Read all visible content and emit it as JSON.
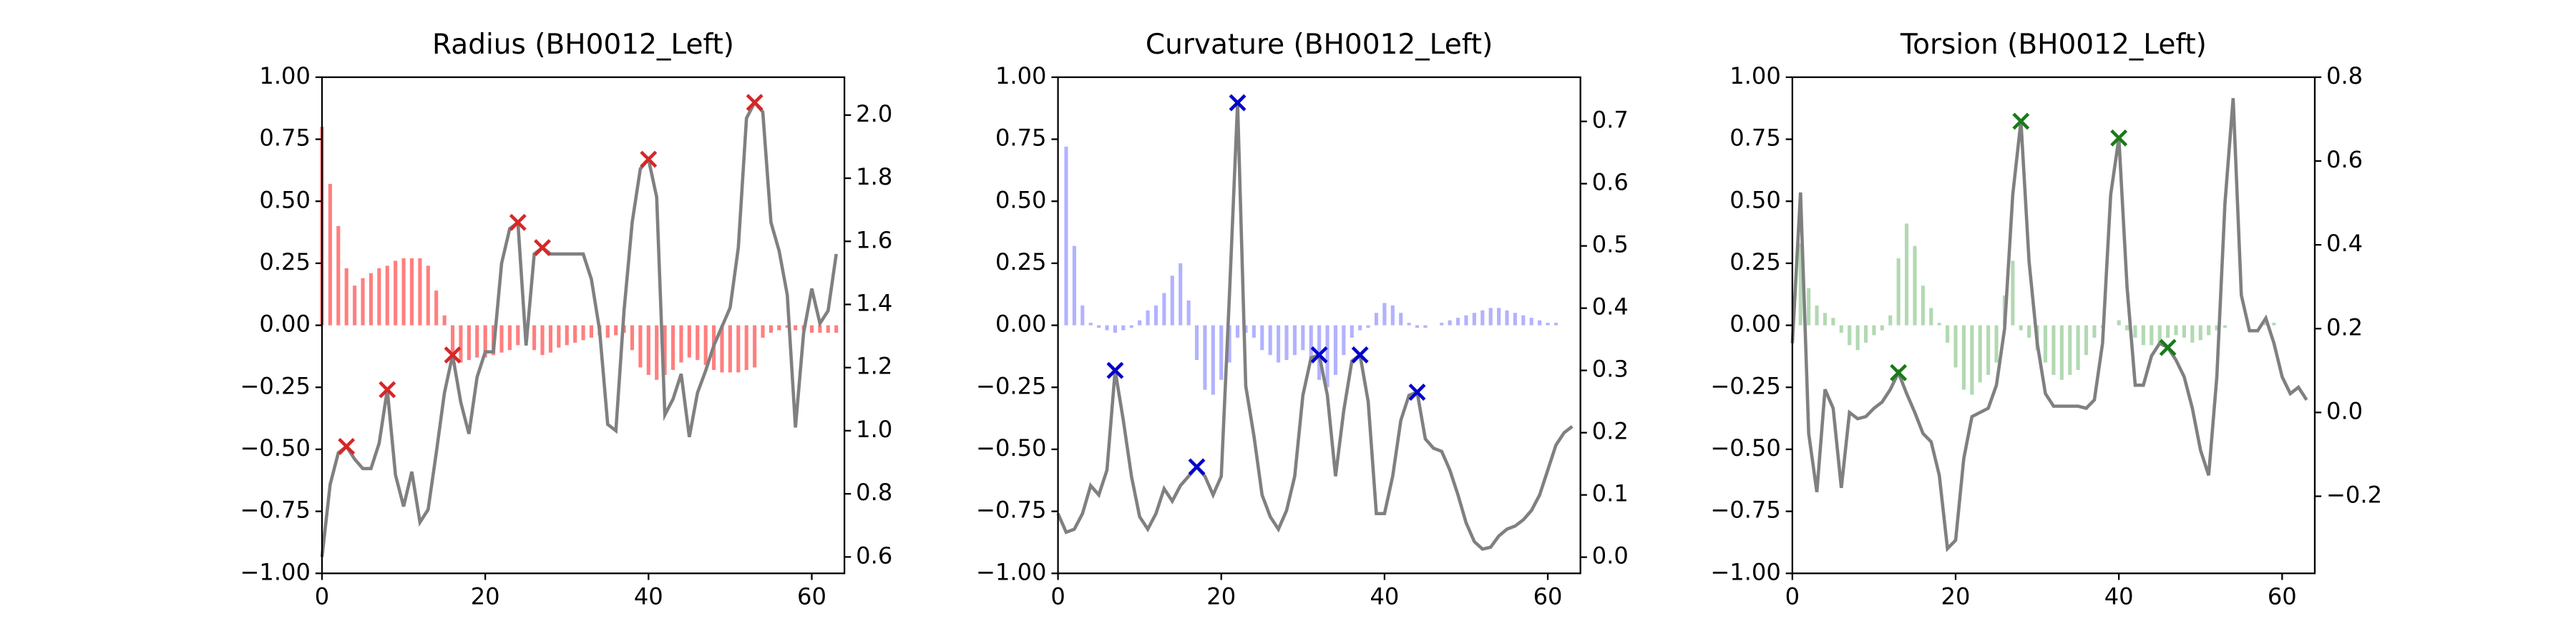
{
  "chart_data": [
    {
      "type": "bar-line",
      "title": "Radius (BH0012_Left)",
      "x": [
        0,
        1,
        2,
        3,
        4,
        5,
        6,
        7,
        8,
        9,
        10,
        11,
        12,
        13,
        14,
        15,
        16,
        17,
        18,
        19,
        20,
        21,
        22,
        23,
        24,
        25,
        26,
        27,
        28,
        29,
        30,
        31,
        32,
        33,
        34,
        35,
        36,
        37,
        38,
        39,
        40,
        41,
        42,
        43,
        44,
        45,
        46,
        47,
        48,
        49,
        50,
        51,
        52,
        53,
        54,
        55,
        56,
        57,
        58,
        59,
        60,
        61,
        62,
        63
      ],
      "bars": {
        "color": "#ff0000",
        "opacity": 0.5,
        "values": [
          0.8,
          0.57,
          0.4,
          0.23,
          0.16,
          0.19,
          0.21,
          0.23,
          0.24,
          0.26,
          0.27,
          0.27,
          0.27,
          0.24,
          0.14,
          0.04,
          -0.13,
          -0.15,
          -0.14,
          -0.13,
          -0.13,
          -0.12,
          -0.11,
          -0.1,
          -0.08,
          -0.06,
          -0.1,
          -0.12,
          -0.11,
          -0.09,
          -0.08,
          -0.07,
          -0.06,
          -0.05,
          -0.04,
          -0.05,
          -0.04,
          -0.03,
          -0.1,
          -0.17,
          -0.2,
          -0.22,
          -0.2,
          -0.18,
          -0.15,
          -0.13,
          -0.14,
          -0.16,
          -0.18,
          -0.19,
          -0.19,
          -0.19,
          -0.18,
          -0.17,
          -0.05,
          -0.03,
          -0.02,
          -0.01,
          -0.02,
          -0.02,
          -0.03,
          -0.03,
          -0.03,
          -0.03
        ]
      },
      "line": {
        "color": "#808080",
        "axis": "y2",
        "values": [
          0.6,
          0.83,
          0.93,
          0.95,
          0.91,
          0.88,
          0.88,
          0.96,
          1.13,
          0.86,
          0.76,
          0.87,
          0.71,
          0.75,
          0.93,
          1.12,
          1.24,
          1.09,
          0.99,
          1.17,
          1.25,
          1.25,
          1.53,
          1.64,
          1.66,
          1.27,
          1.56,
          1.58,
          1.56,
          1.56,
          1.56,
          1.56,
          1.56,
          1.48,
          1.32,
          1.02,
          1.0,
          1.38,
          1.66,
          1.83,
          1.86,
          1.74,
          1.05,
          1.1,
          1.18,
          0.98,
          1.12,
          1.19,
          1.27,
          1.33,
          1.39,
          1.58,
          1.99,
          2.04,
          2.01,
          1.66,
          1.57,
          1.43,
          1.01,
          1.31,
          1.45,
          1.34,
          1.38,
          1.56
        ]
      },
      "peaks": {
        "color": "#d62728",
        "axis": "y2",
        "x": [
          3,
          8,
          16,
          24,
          27,
          40,
          53
        ],
        "values": [
          0.95,
          1.13,
          1.24,
          1.66,
          1.58,
          1.86,
          2.04
        ]
      },
      "xlim": [
        0,
        64
      ],
      "xticks": [
        0,
        20,
        40,
        60
      ],
      "ylim": [
        -1,
        1
      ],
      "yticks": [
        {
          "value": -1,
          "label": "−1.00"
        },
        {
          "value": -0.75,
          "label": "−0.75"
        },
        {
          "value": -0.5,
          "label": "−0.50"
        },
        {
          "value": -0.25,
          "label": "−0.25"
        },
        {
          "value": 0,
          "label": "0.00"
        },
        0.25,
        {
          "value": 0.5,
          "label": "0.50"
        },
        0.75,
        {
          "value": 1,
          "label": "1.00"
        }
      ],
      "y2lim": [
        0.548,
        2.12
      ],
      "y2ticks": [
        0.6,
        0.8,
        {
          "value": 1,
          "label": "1.0"
        },
        1.2,
        1.4,
        1.6,
        1.8,
        {
          "value": 2,
          "label": "2.0"
        }
      ]
    },
    {
      "type": "bar-line",
      "title": "Curvature (BH0012_Left)",
      "x": [
        0,
        1,
        2,
        3,
        4,
        5,
        6,
        7,
        8,
        9,
        10,
        11,
        12,
        13,
        14,
        15,
        16,
        17,
        18,
        19,
        20,
        21,
        22,
        23,
        24,
        25,
        26,
        27,
        28,
        29,
        30,
        31,
        32,
        33,
        34,
        35,
        36,
        37,
        38,
        39,
        40,
        41,
        42,
        43,
        44,
        45,
        46,
        47,
        48,
        49,
        50,
        51,
        52,
        53,
        54,
        55,
        56,
        57,
        58,
        59,
        60,
        61,
        62,
        63
      ],
      "bars": {
        "color": "#0000ff",
        "opacity": 0.3,
        "values": [
          0.0,
          0.72,
          0.32,
          0.08,
          0.01,
          -0.01,
          -0.02,
          -0.03,
          -0.02,
          -0.01,
          0.02,
          0.06,
          0.08,
          0.13,
          0.2,
          0.25,
          0.1,
          -0.14,
          -0.26,
          -0.28,
          -0.22,
          -0.15,
          -0.05,
          -0.03,
          -0.05,
          -0.1,
          -0.12,
          -0.15,
          -0.14,
          -0.12,
          -0.1,
          -0.15,
          -0.22,
          -0.25,
          -0.2,
          -0.12,
          -0.05,
          -0.02,
          -0.01,
          0.05,
          0.09,
          0.08,
          0.05,
          0.01,
          -0.01,
          -0.01,
          0.0,
          0.01,
          0.02,
          0.03,
          0.04,
          0.05,
          0.06,
          0.07,
          0.07,
          0.06,
          0.05,
          0.04,
          0.03,
          0.02,
          0.01,
          0.01,
          0.0,
          0.0
        ]
      },
      "line": {
        "color": "#808080",
        "axis": "y2",
        "values": [
          0.07,
          0.04,
          0.045,
          0.07,
          0.115,
          0.1,
          0.14,
          0.3,
          0.22,
          0.13,
          0.065,
          0.045,
          0.07,
          0.11,
          0.09,
          0.115,
          0.13,
          0.145,
          0.13,
          0.1,
          0.13,
          0.42,
          0.73,
          0.275,
          0.195,
          0.1,
          0.065,
          0.045,
          0.075,
          0.13,
          0.26,
          0.32,
          0.325,
          0.26,
          0.13,
          0.235,
          0.315,
          0.325,
          0.25,
          0.07,
          0.07,
          0.13,
          0.22,
          0.26,
          0.265,
          0.19,
          0.175,
          0.17,
          0.14,
          0.1,
          0.055,
          0.025,
          0.013,
          0.016,
          0.034,
          0.045,
          0.05,
          0.06,
          0.075,
          0.1,
          0.14,
          0.18,
          0.2,
          0.21
        ]
      },
      "peaks": {
        "color": "#0000cc",
        "axis": "y2",
        "x": [
          7,
          17,
          22,
          32,
          37,
          44
        ],
        "values": [
          0.3,
          0.145,
          0.73,
          0.325,
          0.325,
          0.265
        ]
      },
      "xlim": [
        0,
        64
      ],
      "xticks": [
        0,
        20,
        40,
        60
      ],
      "ylim": [
        -1,
        1
      ],
      "yticks": [
        {
          "value": -1,
          "label": "−1.00"
        },
        {
          "value": -0.75,
          "label": "−0.75"
        },
        {
          "value": -0.5,
          "label": "−0.50"
        },
        {
          "value": -0.25,
          "label": "−0.25"
        },
        {
          "value": 0,
          "label": "0.00"
        },
        0.25,
        {
          "value": 0.5,
          "label": "0.50"
        },
        0.75,
        {
          "value": 1,
          "label": "1.00"
        }
      ],
      "y2lim": [
        -0.026,
        0.771
      ],
      "y2ticks": [
        {
          "value": 0,
          "label": "0.0"
        },
        0.1,
        0.2,
        0.3,
        0.4,
        0.5,
        0.6,
        0.7
      ]
    },
    {
      "type": "bar-line",
      "title": "Torsion (BH0012_Left)",
      "x": [
        0,
        1,
        2,
        3,
        4,
        5,
        6,
        7,
        8,
        9,
        10,
        11,
        12,
        13,
        14,
        15,
        16,
        17,
        18,
        19,
        20,
        21,
        22,
        23,
        24,
        25,
        26,
        27,
        28,
        29,
        30,
        31,
        32,
        33,
        34,
        35,
        36,
        37,
        38,
        39,
        40,
        41,
        42,
        43,
        44,
        45,
        46,
        47,
        48,
        49,
        50,
        51,
        52,
        53,
        54,
        55,
        56,
        57,
        58,
        59,
        60,
        61,
        62,
        63
      ],
      "bars": {
        "color": "#008000",
        "opacity": 0.3,
        "values": [
          0.0,
          0.33,
          0.15,
          0.08,
          0.05,
          0.03,
          -0.03,
          -0.08,
          -0.1,
          -0.07,
          -0.04,
          -0.02,
          0.04,
          0.27,
          0.41,
          0.32,
          0.16,
          0.07,
          0.01,
          -0.07,
          -0.17,
          -0.26,
          -0.28,
          -0.23,
          -0.2,
          -0.15,
          0.12,
          0.26,
          -0.02,
          -0.05,
          -0.1,
          -0.15,
          -0.2,
          -0.22,
          -0.2,
          -0.18,
          -0.12,
          -0.05,
          -0.01,
          0.0,
          0.02,
          -0.02,
          -0.05,
          -0.08,
          -0.08,
          -0.07,
          -0.05,
          -0.04,
          -0.05,
          -0.07,
          -0.06,
          -0.04,
          -0.02,
          -0.01,
          0.0,
          0.0,
          0.0,
          0.0,
          0.01,
          0.01,
          0.0,
          0.0,
          0.0,
          0.0
        ]
      },
      "line": {
        "color": "#808080",
        "axis": "y2",
        "values": [
          0.165,
          0.525,
          -0.05,
          -0.19,
          0.055,
          0.01,
          -0.18,
          0.0,
          -0.015,
          -0.01,
          0.01,
          0.025,
          0.055,
          0.095,
          0.045,
          0.0,
          -0.05,
          -0.07,
          -0.15,
          -0.325,
          -0.305,
          -0.11,
          -0.01,
          0.0,
          0.01,
          0.065,
          0.2,
          0.52,
          0.695,
          0.36,
          0.165,
          0.045,
          0.015,
          0.015,
          0.015,
          0.015,
          0.01,
          0.03,
          0.165,
          0.52,
          0.655,
          0.3,
          0.065,
          0.065,
          0.135,
          0.165,
          0.155,
          0.125,
          0.085,
          0.01,
          -0.09,
          -0.15,
          0.085,
          0.5,
          0.75,
          0.28,
          0.195,
          0.195,
          0.225,
          0.165,
          0.085,
          0.045,
          0.06,
          0.03
        ]
      },
      "peaks": {
        "color": "#1a7a1a",
        "axis": "y2",
        "x": [
          13,
          28,
          40,
          46
        ],
        "values": [
          0.095,
          0.695,
          0.655,
          0.155
        ]
      },
      "xlim": [
        0,
        64
      ],
      "xticks": [
        0,
        20,
        40,
        60
      ],
      "ylim": [
        -1,
        1
      ],
      "yticks": [
        {
          "value": -1,
          "label": "−1.00"
        },
        {
          "value": -0.75,
          "label": "−0.75"
        },
        {
          "value": -0.5,
          "label": "−0.50"
        },
        {
          "value": -0.25,
          "label": "−0.25"
        },
        {
          "value": 0,
          "label": "0.00"
        },
        0.25,
        {
          "value": 0.5,
          "label": "0.50"
        },
        0.75,
        {
          "value": 1,
          "label": "1.00"
        }
      ],
      "y2lim": [
        -0.384,
        0.8
      ],
      "y2ticks": [
        {
          "value": -0.2,
          "label": "−0.2"
        },
        {
          "value": 0,
          "label": "0.0"
        },
        0.2,
        0.4,
        0.6,
        0.8
      ]
    }
  ]
}
